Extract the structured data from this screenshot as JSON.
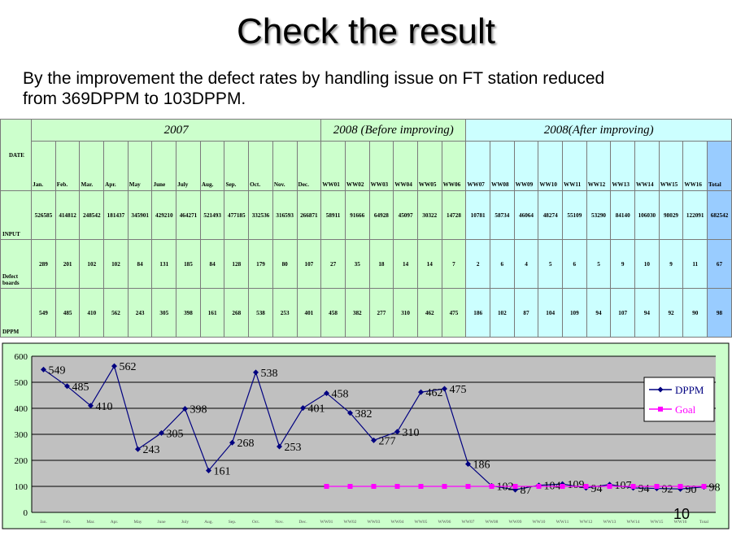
{
  "title": "Check the result",
  "subtitle_line1": "By the improvement the defect rates by handling issue on FT station reduced",
  "subtitle_line2": "from 369DPPM to 103DPPM.",
  "slide_number": "10",
  "table": {
    "group_2007": "2007",
    "group_before": "2008 (Before improving)",
    "group_after": "2008(After improving)",
    "row_date": "DATE",
    "row_input": "INPUT",
    "row_defect": "Defect boards",
    "row_dppm": "DPPM",
    "columns": [
      "Jan.",
      "Feb.",
      "Mar.",
      "Apr.",
      "May",
      "June",
      "July",
      "Aug.",
      "Sep.",
      "Oct.",
      "Nov.",
      "Dec.",
      "WW01",
      "WW02",
      "WW03",
      "WW04",
      "WW05",
      "WW06",
      "WW07",
      "WW08",
      "WW09",
      "WW10",
      "WW11",
      "WW12",
      "WW13",
      "WW14",
      "WW15",
      "WW16",
      "Total"
    ],
    "input": [
      "526585",
      "414812",
      "248542",
      "181437",
      "345901",
      "429210",
      "464271",
      "521493",
      "477185",
      "332536",
      "316593",
      "266871",
      "58911",
      "91666",
      "64928",
      "45097",
      "30322",
      "14728",
      "10781",
      "58734",
      "46064",
      "48274",
      "55109",
      "53290",
      "84140",
      "106030",
      "98029",
      "122091",
      "682542"
    ],
    "defect": [
      "289",
      "201",
      "102",
      "102",
      "84",
      "131",
      "185",
      "84",
      "128",
      "179",
      "80",
      "107",
      "27",
      "35",
      "18",
      "14",
      "14",
      "7",
      "2",
      "6",
      "4",
      "5",
      "6",
      "5",
      "9",
      "10",
      "9",
      "11",
      "67"
    ],
    "dppm": [
      "549",
      "485",
      "410",
      "562",
      "243",
      "305",
      "398",
      "161",
      "268",
      "538",
      "253",
      "401",
      "458",
      "382",
      "277",
      "310",
      "462",
      "475",
      "186",
      "102",
      "87",
      "104",
      "109",
      "94",
      "107",
      "94",
      "92",
      "90",
      "98"
    ]
  },
  "chart_data": {
    "type": "line",
    "categories": [
      "Jan.",
      "Feb.",
      "Mar.",
      "Apr.",
      "May",
      "June",
      "July",
      "Aug.",
      "Sep.",
      "Oct.",
      "Nov.",
      "Dec.",
      "WW01",
      "WW02",
      "WW03",
      "WW04",
      "WW05",
      "WW06",
      "WW07",
      "WW08",
      "WW09",
      "WW10",
      "WW11",
      "WW12",
      "WW13",
      "WW14",
      "WW15",
      "WW16",
      "Total"
    ],
    "series": [
      {
        "name": "DPPM",
        "color": "#000080",
        "marker": "diamond",
        "values": [
          549,
          485,
          410,
          562,
          243,
          305,
          398,
          161,
          268,
          538,
          253,
          401,
          458,
          382,
          277,
          310,
          462,
          475,
          186,
          102,
          87,
          104,
          109,
          94,
          107,
          94,
          92,
          90,
          98
        ]
      },
      {
        "name": "Goal",
        "color": "#ff00ff",
        "marker": "square",
        "values": [
          null,
          null,
          null,
          null,
          null,
          null,
          null,
          null,
          null,
          null,
          null,
          null,
          100,
          100,
          100,
          100,
          100,
          100,
          100,
          100,
          100,
          100,
          100,
          100,
          100,
          100,
          100,
          100,
          100
        ]
      }
    ],
    "ylim": [
      0,
      600
    ],
    "yticks": [
      0,
      100,
      200,
      300,
      400,
      500,
      600
    ],
    "grid": true,
    "legend": "right",
    "data_labels": "DPPM",
    "plot_background": "#c0c0c0",
    "chart_background": "#ccffcc"
  }
}
